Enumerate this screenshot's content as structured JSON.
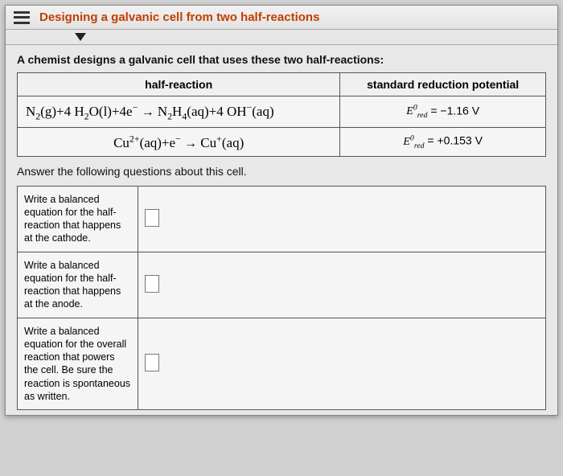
{
  "window": {
    "title": "Designing a galvanic cell from two half-reactions"
  },
  "intro": "A chemist designs a galvanic cell that uses these two half-reactions:",
  "table": {
    "header_left": "half-reaction",
    "header_right": "standard reduction potential",
    "rows": [
      {
        "reaction_html": "N<sub>2</sub>(g)+4 H<sub>2</sub>O(l)+4e<sup>−</sup> <span class='arrow'>→</span> N<sub>2</sub>H<sub>4</sub>(aq)+4 OH<sup>−</sup>(aq)",
        "potential_prefix": "E",
        "potential_sup": "0",
        "potential_sub": "red",
        "potential_value": "= −1.16 V"
      },
      {
        "reaction_html": "Cu<sup>2+</sup>(aq)+e<sup>−</sup> <span class='arrow'>→</span> Cu<sup>+</sup>(aq)",
        "potential_prefix": "E",
        "potential_sup": "0",
        "potential_sub": "red",
        "potential_value": "= +0.153 V"
      }
    ]
  },
  "instruction": "Answer the following questions about this cell.",
  "questions": [
    {
      "prompt": "Write a balanced equation for the half-reaction that happens at the cathode."
    },
    {
      "prompt": "Write a balanced equation for the half-reaction that happens at the anode."
    },
    {
      "prompt": "Write a balanced equation for the overall reaction that powers the cell. Be sure the reaction is spontaneous as written."
    }
  ],
  "colors": {
    "title_color": "#c04000",
    "border_color": "#555555",
    "bg": "#e8e8e8"
  }
}
